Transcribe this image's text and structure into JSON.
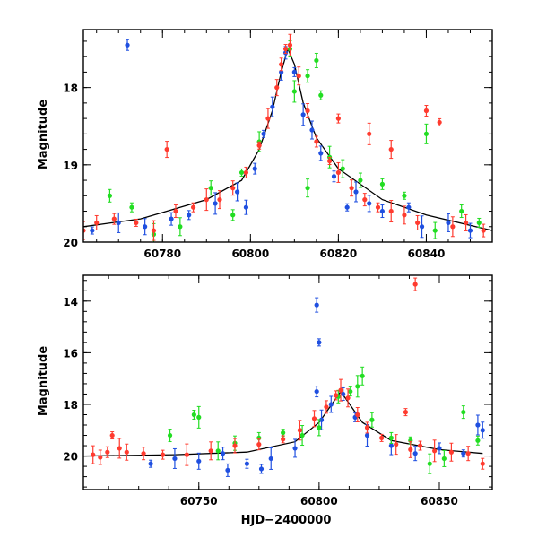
{
  "chart_data": [
    {
      "type": "scatter",
      "panel": "top",
      "title": "",
      "xlabel": "",
      "ylabel": "Magnitude",
      "xlim": [
        60762,
        60855
      ],
      "ylim": [
        20.0,
        17.25
      ],
      "y_inverted": true,
      "x_ticks": [
        60780,
        60800,
        60820,
        60840
      ],
      "x_tick_labels": [
        "60780",
        "60800",
        "60820",
        "60840"
      ],
      "y_ticks": [
        18,
        19,
        20
      ],
      "y_tick_labels": [
        "18",
        "19",
        "20"
      ],
      "grid": false,
      "legend": "none",
      "model_curve": {
        "color": "#000000",
        "x": [
          60762,
          60775,
          60790,
          60798,
          60802,
          60805,
          60807,
          60808.5,
          60810,
          60812,
          60815,
          60820,
          60830,
          60840,
          60855
        ],
        "y": [
          19.8,
          19.7,
          19.45,
          19.2,
          18.8,
          18.3,
          17.8,
          17.5,
          17.7,
          18.2,
          18.65,
          19.05,
          19.45,
          19.65,
          19.85
        ]
      },
      "series": [
        {
          "color": "#1f4fe0",
          "points": [
            [
              60764,
              19.85
            ],
            [
              60770,
              19.75
            ],
            [
              60776,
              19.8
            ],
            [
              60782,
              19.7
            ],
            [
              60786,
              19.65
            ],
            [
              60792,
              19.5
            ],
            [
              60797,
              19.35
            ],
            [
              60799,
              19.55
            ],
            [
              60801,
              19.05
            ],
            [
              60803,
              18.6
            ],
            [
              60805,
              18.25
            ],
            [
              60807,
              17.8
            ],
            [
              60808,
              17.55
            ],
            [
              60810,
              17.8
            ],
            [
              60812,
              18.35
            ],
            [
              60814,
              18.55
            ],
            [
              60816,
              18.85
            ],
            [
              60819,
              19.15
            ],
            [
              60822,
              19.55
            ],
            [
              60824,
              19.35
            ],
            [
              60827,
              19.5
            ],
            [
              60830,
              19.6
            ],
            [
              60836,
              19.55
            ],
            [
              60839,
              19.8
            ],
            [
              60845,
              19.75
            ],
            [
              60850,
              19.85
            ],
            [
              60772,
              17.45
            ]
          ]
        },
        {
          "color": "#22dd22",
          "points": [
            [
              60768,
              19.4
            ],
            [
              60773,
              19.55
            ],
            [
              60778,
              19.9
            ],
            [
              60784,
              19.8
            ],
            [
              60791,
              19.3
            ],
            [
              60796,
              19.65
            ],
            [
              60798,
              19.1
            ],
            [
              60802,
              18.7
            ],
            [
              60809,
              17.5
            ],
            [
              60813,
              17.85
            ],
            [
              60816,
              18.1
            ],
            [
              60818,
              18.9
            ],
            [
              60821,
              19.05
            ],
            [
              60825,
              19.2
            ],
            [
              60830,
              19.25
            ],
            [
              60835,
              19.4
            ],
            [
              60840,
              18.6
            ],
            [
              60842,
              19.85
            ],
            [
              60848,
              19.6
            ],
            [
              60852,
              19.75
            ],
            [
              60810,
              18.05
            ],
            [
              60813,
              19.3
            ],
            [
              60815,
              17.65
            ]
          ]
        },
        {
          "color": "#ff3b2f",
          "points": [
            [
              60762,
              19.85
            ],
            [
              60765,
              19.75
            ],
            [
              60769,
              19.7
            ],
            [
              60774,
              19.75
            ],
            [
              60778,
              19.85
            ],
            [
              60781,
              18.8
            ],
            [
              60783,
              19.6
            ],
            [
              60787,
              19.55
            ],
            [
              60790,
              19.45
            ],
            [
              60793,
              19.45
            ],
            [
              60796,
              19.3
            ],
            [
              60799,
              19.1
            ],
            [
              60802,
              18.75
            ],
            [
              60804,
              18.4
            ],
            [
              60806,
              18.0
            ],
            [
              60807,
              17.7
            ],
            [
              60808,
              17.5
            ],
            [
              60809,
              17.45
            ],
            [
              60811,
              17.85
            ],
            [
              60813,
              18.3
            ],
            [
              60815,
              18.7
            ],
            [
              60818,
              18.95
            ],
            [
              60820,
              19.1
            ],
            [
              60823,
              19.3
            ],
            [
              60826,
              19.45
            ],
            [
              60829,
              19.55
            ],
            [
              60832,
              19.6
            ],
            [
              60835,
              19.65
            ],
            [
              60838,
              19.75
            ],
            [
              60840,
              18.3
            ],
            [
              60843,
              18.45
            ],
            [
              60846,
              19.8
            ],
            [
              60849,
              19.75
            ],
            [
              60853,
              19.85
            ],
            [
              60820,
              18.4
            ],
            [
              60827,
              18.6
            ],
            [
              60832,
              18.8
            ]
          ]
        }
      ]
    },
    {
      "type": "scatter",
      "panel": "bottom",
      "title": "",
      "xlabel": "HJD−2400000",
      "ylabel": "Magnitude",
      "xlim": [
        60702,
        60872
      ],
      "ylim": [
        21.3,
        13.0
      ],
      "y_inverted": true,
      "x_ticks": [
        60750,
        60800,
        60850
      ],
      "x_tick_labels": [
        "60750",
        "60800",
        "60850"
      ],
      "y_ticks": [
        14,
        16,
        18,
        20
      ],
      "y_tick_labels": [
        "14",
        "16",
        "18",
        "20"
      ],
      "grid": false,
      "legend": "none",
      "model_curve": {
        "color": "#000000",
        "x": [
          60702,
          60740,
          60770,
          60790,
          60800,
          60806,
          60809,
          60812,
          60818,
          60830,
          60850,
          60868
        ],
        "y": [
          20.0,
          19.95,
          19.85,
          19.45,
          18.7,
          17.9,
          17.5,
          17.9,
          18.7,
          19.4,
          19.75,
          19.9
        ]
      },
      "series": [
        {
          "color": "#1f4fe0",
          "points": [
            [
              60730,
              20.3
            ],
            [
              60740,
              20.1
            ],
            [
              60750,
              20.2
            ],
            [
              60760,
              19.9
            ],
            [
              60770,
              20.3
            ],
            [
              60780,
              20.1
            ],
            [
              60790,
              19.7
            ],
            [
              60799,
              14.15
            ],
            [
              60799,
              17.5
            ],
            [
              60800,
              15.6
            ],
            [
              60801,
              18.6
            ],
            [
              60805,
              18.0
            ],
            [
              60810,
              17.6
            ],
            [
              60815,
              18.5
            ],
            [
              60820,
              19.2
            ],
            [
              60830,
              19.6
            ],
            [
              60840,
              19.9
            ],
            [
              60850,
              19.7
            ],
            [
              60860,
              19.9
            ],
            [
              60866,
              18.8
            ],
            [
              60868,
              19.0
            ],
            [
              60762,
              20.55
            ],
            [
              60776,
              20.5
            ]
          ]
        },
        {
          "color": "#22dd22",
          "points": [
            [
              60738,
              19.2
            ],
            [
              60748,
              18.4
            ],
            [
              60750,
              18.5
            ],
            [
              60758,
              19.8
            ],
            [
              60765,
              19.5
            ],
            [
              60775,
              19.3
            ],
            [
              60785,
              19.1
            ],
            [
              60793,
              19.2
            ],
            [
              60800,
              18.9
            ],
            [
              60808,
              17.7
            ],
            [
              60813,
              17.5
            ],
            [
              60816,
              17.3
            ],
            [
              60818,
              16.9
            ],
            [
              60822,
              18.6
            ],
            [
              60830,
              19.3
            ],
            [
              60838,
              19.4
            ],
            [
              60846,
              20.3
            ],
            [
              60852,
              20.1
            ],
            [
              60860,
              18.3
            ],
            [
              60866,
              19.4
            ]
          ]
        },
        {
          "color": "#ff3b2f",
          "points": [
            [
              60706,
              19.95
            ],
            [
              60709,
              20.05
            ],
            [
              60712,
              19.85
            ],
            [
              60714,
              19.2
            ],
            [
              60717,
              19.7
            ],
            [
              60720,
              19.85
            ],
            [
              60727,
              19.9
            ],
            [
              60735,
              19.95
            ],
            [
              60745,
              19.95
            ],
            [
              60755,
              19.8
            ],
            [
              60765,
              19.6
            ],
            [
              60775,
              19.55
            ],
            [
              60785,
              19.35
            ],
            [
              60792,
              19.0
            ],
            [
              60798,
              18.55
            ],
            [
              60803,
              18.1
            ],
            [
              60807,
              17.65
            ],
            [
              60809,
              17.45
            ],
            [
              60812,
              17.75
            ],
            [
              60816,
              18.4
            ],
            [
              60820,
              18.9
            ],
            [
              60826,
              19.3
            ],
            [
              60832,
              19.55
            ],
            [
              60838,
              19.75
            ],
            [
              60840,
              13.35
            ],
            [
              60842,
              19.6
            ],
            [
              60848,
              19.8
            ],
            [
              60855,
              19.85
            ],
            [
              60862,
              19.9
            ],
            [
              60868,
              20.3
            ],
            [
              60836,
              18.3
            ]
          ]
        }
      ]
    }
  ]
}
